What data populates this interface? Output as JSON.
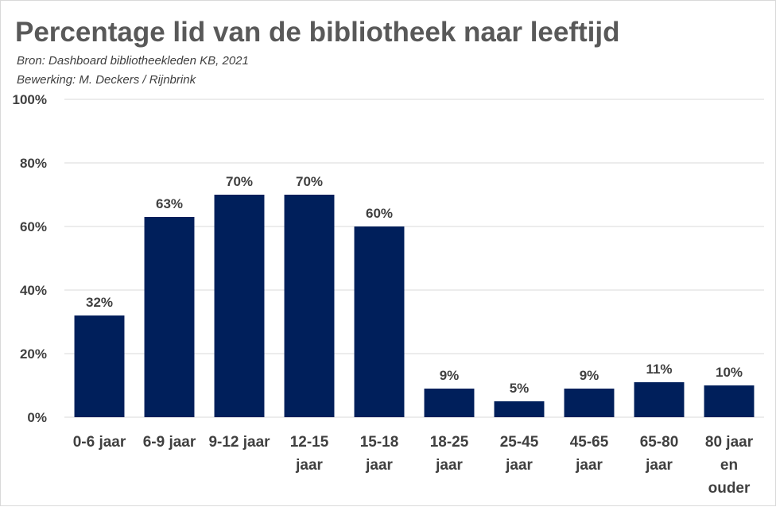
{
  "chart_data": {
    "type": "bar",
    "title": "Percentage lid van de bibliotheek naar leeftijd",
    "subtitle_lines": [
      "Bron: Dashboard bibliotheekleden KB, 2021",
      "Bewerking: M. Deckers / Rijnbrink"
    ],
    "categories": [
      [
        "0-6 jaar"
      ],
      [
        "6-9 jaar"
      ],
      [
        "9-12 jaar"
      ],
      [
        "12-15",
        "jaar"
      ],
      [
        "15-18",
        "jaar"
      ],
      [
        "18-25",
        "jaar"
      ],
      [
        "25-45",
        "jaar"
      ],
      [
        "45-65",
        "jaar"
      ],
      [
        "65-80",
        "jaar"
      ],
      [
        "80 jaar",
        "en",
        "ouder"
      ]
    ],
    "values": [
      32,
      63,
      70,
      70,
      60,
      9,
      5,
      9,
      11,
      10
    ],
    "data_labels": [
      "32%",
      "63%",
      "70%",
      "70%",
      "60%",
      "9%",
      "5%",
      "9%",
      "11%",
      "10%"
    ],
    "ylim": [
      0,
      100
    ],
    "yticks": [
      0,
      20,
      40,
      60,
      80,
      100
    ],
    "ytick_labels": [
      "0%",
      "20%",
      "40%",
      "60%",
      "80%",
      "100%"
    ],
    "xlabel": "",
    "ylabel": "",
    "grid": true,
    "legend": "none",
    "bar_color": "#001f5b",
    "grid_color": "#d9d9d9"
  }
}
